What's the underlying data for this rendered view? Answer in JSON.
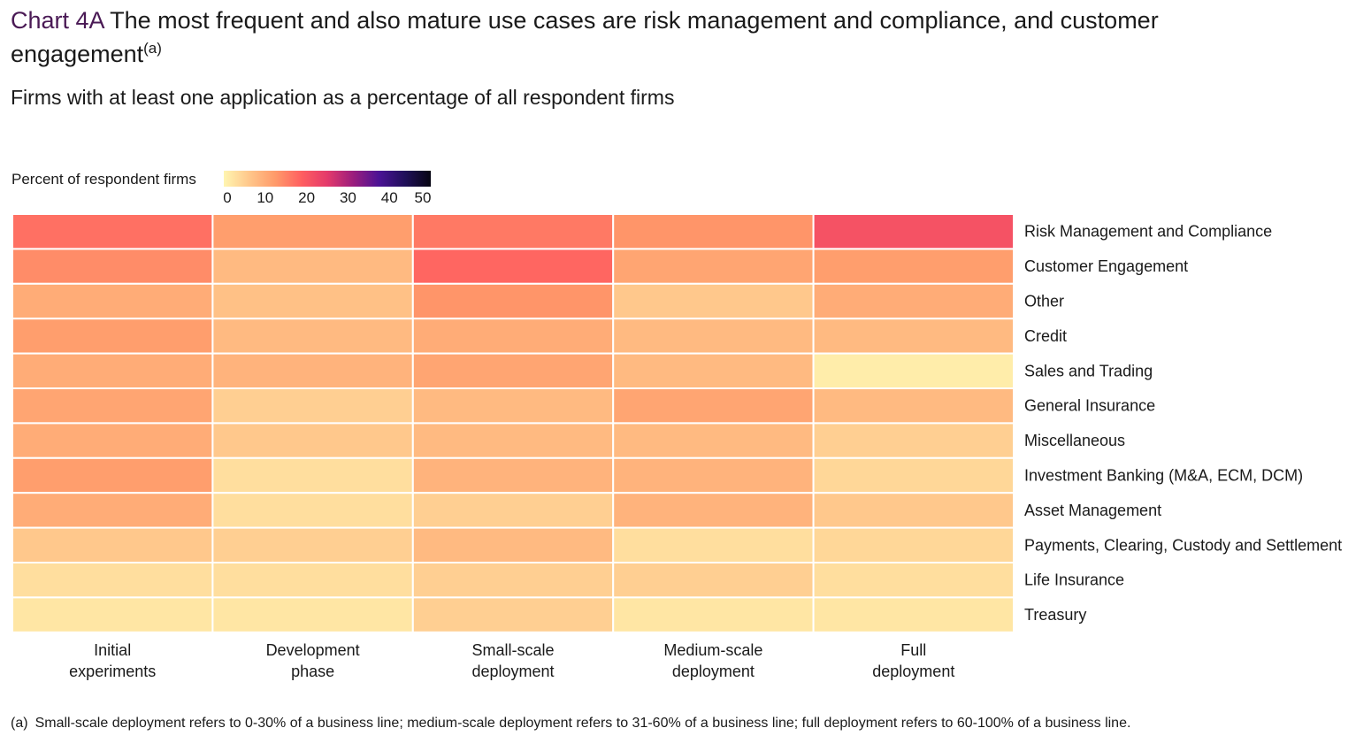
{
  "chart_prefix": "Chart 4A",
  "title": "The most frequent and also mature use cases are risk management and compliance, and customer engagement",
  "title_superscript": "(a)",
  "subtitle": "Firms with at least one application as a percentage of all respondent firms",
  "footnote": {
    "marker": "(a)",
    "text": "Small-scale deployment refers to 0-30% of a business line; medium-scale deployment refers to 31-60% of a business line; full deployment refers to 60-100% of a business line."
  },
  "chart_data": {
    "type": "heatmap",
    "legend": {
      "title": "Percent of respondent firms",
      "ticks": [
        0,
        10,
        20,
        30,
        40,
        50
      ],
      "range": [
        0,
        50
      ],
      "colors": [
        "#fff5b0",
        "#ffc68a",
        "#ff9a6a",
        "#ff5f60",
        "#e43a6b",
        "#9b1d7d",
        "#4b1295",
        "#20105a",
        "#060512"
      ]
    },
    "columns": [
      [
        "Initial",
        "experiments"
      ],
      [
        "Development",
        "phase"
      ],
      [
        "Small-scale",
        "deployment"
      ],
      [
        "Medium-scale",
        "deployment"
      ],
      [
        "Full",
        "deployment"
      ]
    ],
    "rows": [
      "Risk Management and Compliance",
      "Customer Engagement",
      "Other",
      "Credit",
      "Sales and Trading",
      "General Insurance",
      "Miscellaneous",
      "Investment Banking (M&A, ECM, DCM)",
      "Asset Management",
      "Payments, Clearing, Custody and Settlement",
      "Life Insurance",
      "Treasury"
    ],
    "values": [
      [
        17,
        12,
        16,
        13,
        21
      ],
      [
        14,
        8,
        18,
        11,
        12
      ],
      [
        10,
        7,
        13,
        6,
        10
      ],
      [
        12,
        8,
        10,
        8,
        8
      ],
      [
        10,
        9,
        11,
        8,
        1
      ],
      [
        11,
        5,
        8,
        11,
        8
      ],
      [
        10,
        6,
        8,
        8,
        5
      ],
      [
        12,
        3,
        9,
        9,
        4
      ],
      [
        10,
        3,
        5,
        9,
        6
      ],
      [
        6,
        5,
        8,
        3,
        4
      ],
      [
        3,
        3,
        5,
        5,
        3
      ],
      [
        2,
        2,
        5,
        2,
        2
      ]
    ]
  }
}
